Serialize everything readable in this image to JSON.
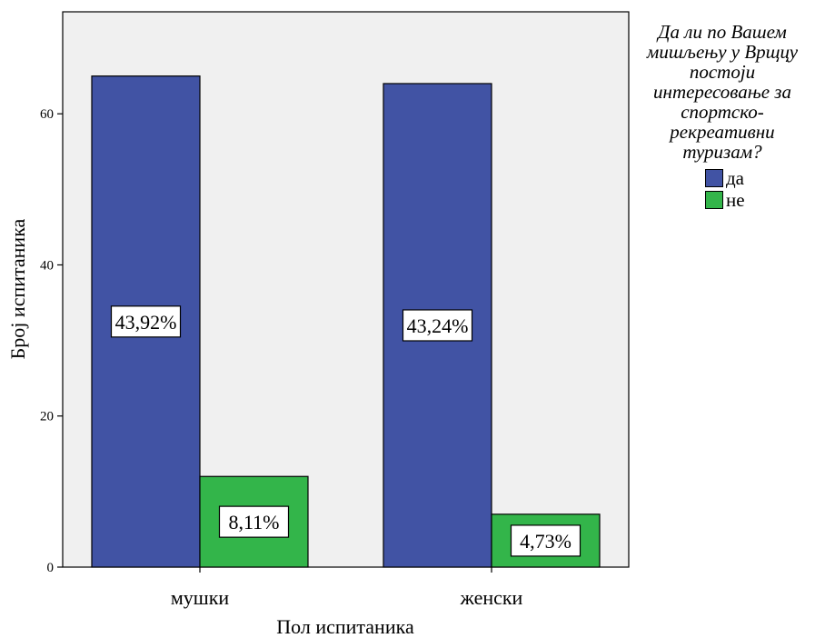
{
  "chart_data": {
    "type": "bar",
    "categories": [
      "мушки",
      "женски"
    ],
    "series": [
      {
        "name": "да",
        "values": [
          65,
          64
        ],
        "labels": [
          "43,92%",
          "43,24%"
        ],
        "color": "#4153a4"
      },
      {
        "name": "не",
        "values": [
          12,
          7
        ],
        "labels": [
          "8,11%",
          "4,73%"
        ],
        "color": "#33b54a"
      }
    ],
    "xlabel": "Пол испитаника",
    "ylabel": "Број испитаника",
    "ylim": [
      0,
      73.5
    ],
    "yticks": [
      "0",
      "20",
      "40",
      "60"
    ],
    "legend_title": "Да ли по Вашем мишљењу у Врщцу постоји интересовање за спортско-рекреативни туризам?",
    "legend_title_lines": [
      "Да ли по Вашем",
      "мишљењу у Врщцу",
      "постоји",
      "интересовање за",
      "спортско-",
      "рекреативни",
      "туризам?"
    ],
    "legend_position": "right",
    "plot_background": "#f0f0f0",
    "grid": false
  }
}
